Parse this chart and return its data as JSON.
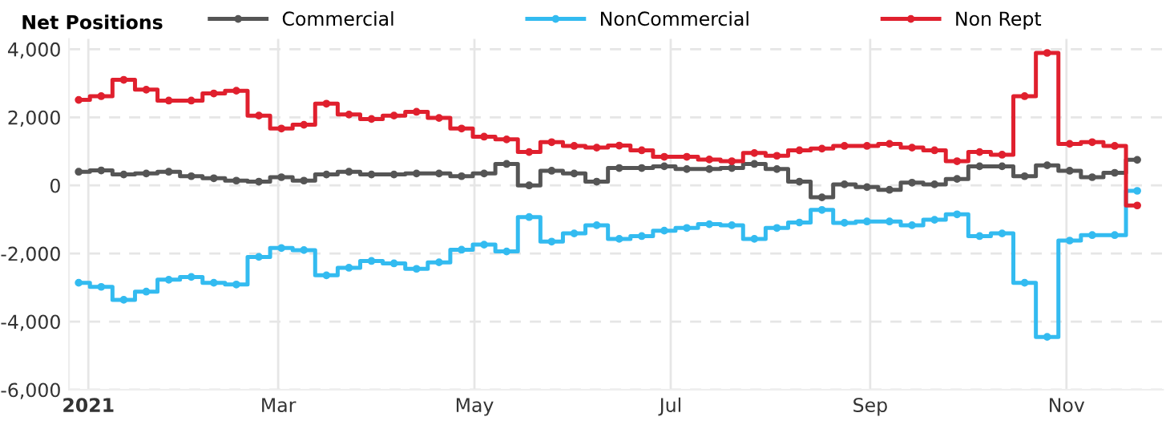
{
  "chart_data": {
    "type": "step",
    "title": "Net Positions",
    "x": [
      "2020-12-29",
      "2021-01-05",
      "2021-01-12",
      "2021-01-19",
      "2021-01-26",
      "2021-02-02",
      "2021-02-09",
      "2021-02-16",
      "2021-02-23",
      "2021-03-02",
      "2021-03-09",
      "2021-03-16",
      "2021-03-23",
      "2021-03-30",
      "2021-04-06",
      "2021-04-13",
      "2021-04-20",
      "2021-04-27",
      "2021-05-04",
      "2021-05-11",
      "2021-05-18",
      "2021-05-25",
      "2021-06-01",
      "2021-06-08",
      "2021-06-15",
      "2021-06-22",
      "2021-06-29",
      "2021-07-06",
      "2021-07-13",
      "2021-07-20",
      "2021-07-27",
      "2021-08-03",
      "2021-08-10",
      "2021-08-17",
      "2021-08-24",
      "2021-08-31",
      "2021-09-07",
      "2021-09-14",
      "2021-09-21",
      "2021-09-28",
      "2021-10-05",
      "2021-10-12",
      "2021-10-19",
      "2021-10-26",
      "2021-11-02",
      "2021-11-09",
      "2021-11-16",
      "2021-11-23"
    ],
    "series": [
      {
        "name": "Commercial",
        "color": "#555555",
        "values": [
          400,
          440,
          320,
          350,
          400,
          270,
          210,
          140,
          110,
          240,
          140,
          320,
          400,
          320,
          320,
          350,
          350,
          270,
          350,
          630,
          0,
          430,
          350,
          110,
          510,
          510,
          560,
          480,
          480,
          510,
          630,
          480,
          110,
          -350,
          30,
          -50,
          -130,
          80,
          30,
          190,
          560,
          560,
          270,
          590,
          430,
          240,
          370,
          750
        ]
      },
      {
        "name": "NonCommercial",
        "color": "#33bbf0",
        "values": [
          -2860,
          -2980,
          -3360,
          -3120,
          -2770,
          -2690,
          -2860,
          -2910,
          -2100,
          -1840,
          -1900,
          -2640,
          -2420,
          -2220,
          -2290,
          -2450,
          -2260,
          -1890,
          -1740,
          -1940,
          -930,
          -1650,
          -1410,
          -1170,
          -1570,
          -1490,
          -1330,
          -1250,
          -1140,
          -1170,
          -1570,
          -1250,
          -1090,
          -720,
          -1100,
          -1060,
          -1060,
          -1170,
          -1010,
          -850,
          -1490,
          -1410,
          -2860,
          -4450,
          -1620,
          -1460,
          -1460,
          -160
        ]
      },
      {
        "name": "Non Rept",
        "color": "#e0202e",
        "values": [
          2510,
          2620,
          3100,
          2810,
          2490,
          2490,
          2700,
          2780,
          2050,
          1670,
          1780,
          2400,
          2080,
          1950,
          2050,
          2160,
          1980,
          1670,
          1430,
          1350,
          980,
          1270,
          1160,
          1110,
          1170,
          1030,
          840,
          840,
          760,
          710,
          950,
          870,
          1030,
          1080,
          1160,
          1160,
          1220,
          1110,
          1030,
          710,
          980,
          900,
          2620,
          3890,
          1220,
          1270,
          1160,
          -590
        ]
      }
    ],
    "xlim": [
      "2020-12-26",
      "2021-12-01"
    ],
    "xticks": [
      {
        "value": "2021-01-01",
        "label": "2021"
      },
      {
        "value": "2021-03-01",
        "label": "Mar"
      },
      {
        "value": "2021-05-01",
        "label": "May"
      },
      {
        "value": "2021-07-01",
        "label": "Jul"
      },
      {
        "value": "2021-09-01",
        "label": "Sep"
      },
      {
        "value": "2021-11-01",
        "label": "Nov"
      }
    ],
    "ylim": [
      -6000,
      4300
    ],
    "yticks": [
      {
        "value": -6000,
        "label": "-6,000"
      },
      {
        "value": -4000,
        "label": "-4,000"
      },
      {
        "value": -2000,
        "label": "-2,000"
      },
      0,
      {
        "value": 2000,
        "label": "2,000"
      },
      {
        "value": 4000,
        "label": "4,000"
      }
    ],
    "grid": true,
    "legend": "top",
    "marker": "circle",
    "line_style": "solid"
  }
}
